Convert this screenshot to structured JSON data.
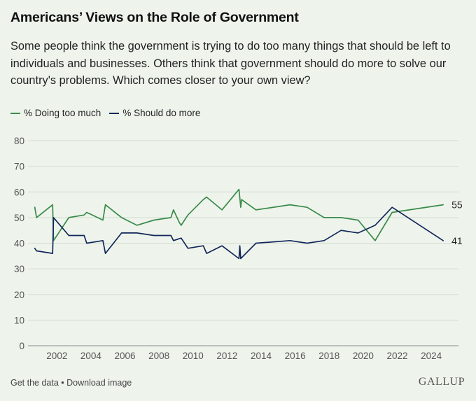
{
  "title": "Americans’ Views on the Role of Government",
  "subtitle": "Some people think the government is trying to do too many things that should be left to individuals and businesses. Others think that government should do more to solve our country's problems. Which comes closer to your own view?",
  "footer": {
    "get_data": "Get the data",
    "separator": " • ",
    "download": "Download image",
    "brand": "GALLUP"
  },
  "colors": {
    "doing_too_much": "#3a8a4a",
    "should_do_more": "#13275a"
  },
  "chart_data": {
    "type": "line",
    "title": "Americans’ Views on the Role of Government",
    "xlabel": "",
    "ylabel": "",
    "xlim": [
      2000.3,
      2025.6
    ],
    "ylim": [
      0,
      80
    ],
    "yticks": [
      0,
      10,
      20,
      30,
      40,
      50,
      60,
      70,
      80
    ],
    "xticks": [
      2002,
      2004,
      2006,
      2008,
      2010,
      2012,
      2014,
      2016,
      2018,
      2020,
      2022,
      2024
    ],
    "grid": true,
    "legend_position": "top-left",
    "series": [
      {
        "name": "% Doing too much",
        "color": "#3a8a4a",
        "end_label": "55",
        "x": [
          2000.7,
          2000.8,
          2001.75,
          2001.8,
          2002.7,
          2003.6,
          2003.75,
          2004.7,
          2004.85,
          2005.8,
          2006.7,
          2007.7,
          2008.7,
          2008.85,
          2009.2,
          2009.3,
          2009.7,
          2010.6,
          2010.8,
          2011.7,
          2012.7,
          2012.8,
          2012.85,
          2013.7,
          2015.7,
          2016.7,
          2017.7,
          2018.7,
          2019.7,
          2020.7,
          2021.7,
          2024.7
        ],
        "y": [
          54,
          50,
          55,
          41,
          50,
          51,
          52,
          49,
          55,
          50,
          47,
          49,
          50,
          53,
          48,
          47,
          51,
          57,
          58,
          53,
          61,
          54,
          57,
          53,
          55,
          54,
          50,
          50,
          49,
          41,
          52,
          55
        ]
      },
      {
        "name": "% Should do more",
        "color": "#13275a",
        "end_label": "41",
        "x": [
          2000.7,
          2000.8,
          2001.75,
          2001.8,
          2002.7,
          2003.6,
          2003.75,
          2004.7,
          2004.85,
          2005.8,
          2006.7,
          2007.7,
          2008.7,
          2008.85,
          2009.3,
          2009.7,
          2010.6,
          2010.8,
          2011.7,
          2012.7,
          2012.75,
          2012.8,
          2013.7,
          2015.7,
          2016.7,
          2017.7,
          2018.7,
          2019.7,
          2020.7,
          2021.7,
          2024.7
        ],
        "y": [
          38,
          37,
          36,
          50,
          43,
          43,
          40,
          41,
          36,
          44,
          44,
          43,
          43,
          41,
          42,
          38,
          39,
          36,
          39,
          34,
          39,
          34,
          40,
          41,
          40,
          41,
          45,
          44,
          47,
          54,
          41
        ]
      }
    ]
  }
}
